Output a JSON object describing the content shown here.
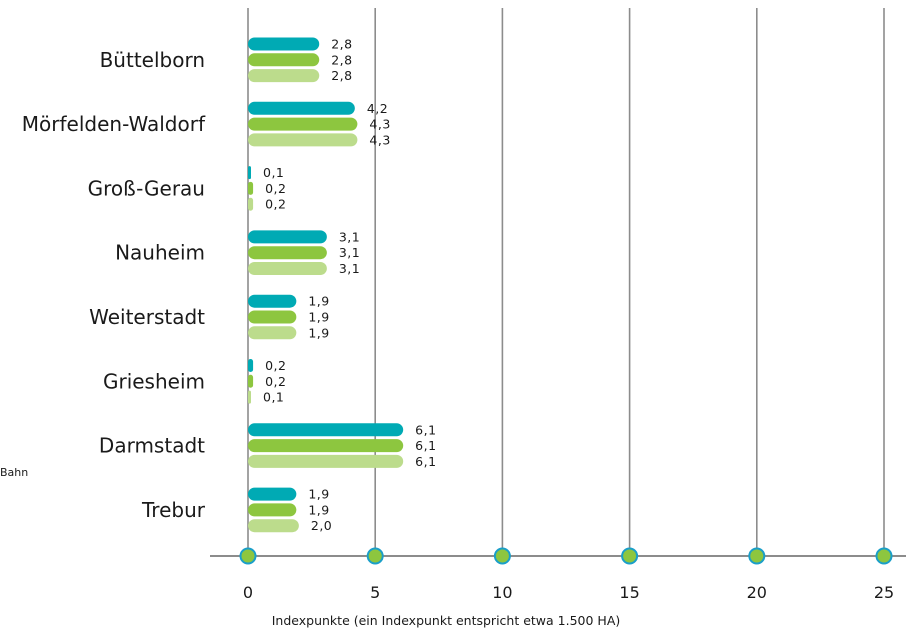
{
  "chart_data": {
    "type": "bar",
    "orientation": "horizontal",
    "categories": [
      "Büttelborn",
      "Mörfelden-Waldorf",
      "Groß-Gerau",
      "Nauheim",
      "Weiterstadt",
      "Griesheim",
      "Darmstadt",
      "Trebur"
    ],
    "series": [
      {
        "color": "#00aab4",
        "values": [
          2.8,
          4.2,
          0.1,
          3.1,
          1.9,
          0.2,
          6.1,
          1.9
        ],
        "labels": [
          "2,8",
          "4,2",
          "0,1",
          "3,1",
          "1,9",
          "0,2",
          "6,1",
          "1,9"
        ]
      },
      {
        "color": "#8dc63f",
        "values": [
          2.8,
          4.3,
          0.2,
          3.1,
          1.9,
          0.2,
          6.1,
          1.9
        ],
        "labels": [
          "2,8",
          "4,3",
          "0,2",
          "3,1",
          "1,9",
          "0,2",
          "6,1",
          "1,9"
        ]
      },
      {
        "color": "#bcdc8c",
        "values": [
          2.8,
          4.3,
          0.2,
          3.1,
          1.9,
          0.1,
          6.1,
          2.0
        ],
        "labels": [
          "2,8",
          "4,3",
          "0,2",
          "3,1",
          "1,9",
          "0,1",
          "6,1",
          "2,0"
        ]
      }
    ],
    "xlim": [
      0,
      25
    ],
    "xticks": [
      "0",
      "5",
      "10",
      "15",
      "20",
      "25"
    ],
    "xlabel": "Indexpunkte (ein Indexpunkt entspricht etwa 1.500 HA)",
    "grid": "vertical",
    "axis_color": "#666666",
    "marker_fill": "#8dc63f",
    "marker_stroke": "#1a9fc9"
  },
  "side_note": "Bahn"
}
